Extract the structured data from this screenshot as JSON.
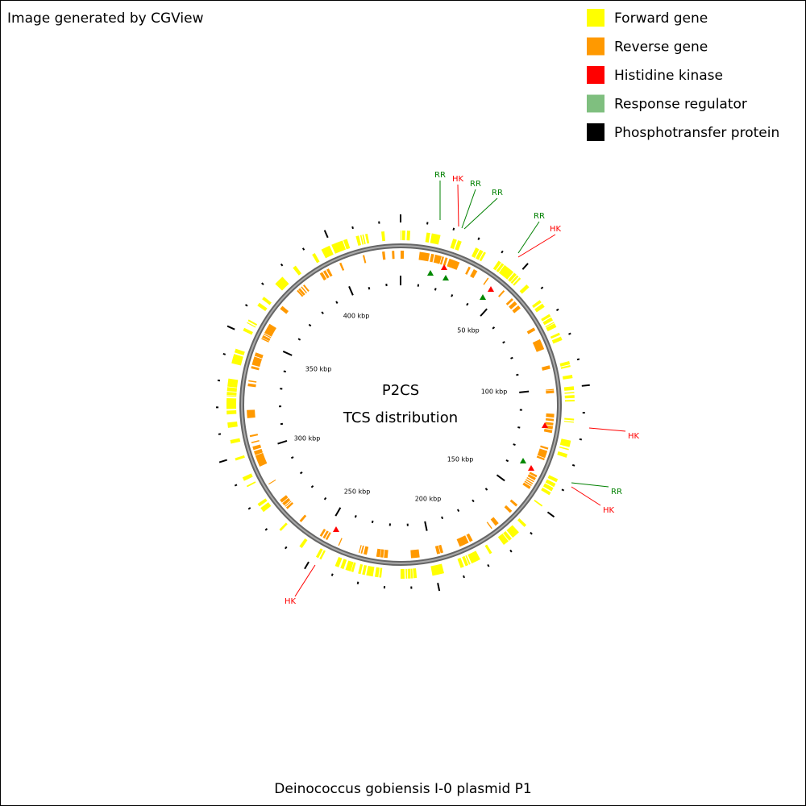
{
  "header": {
    "title": "Image generated by CGView"
  },
  "legend": [
    {
      "label": "Forward gene",
      "color": "#ffff00"
    },
    {
      "label": "Reverse gene",
      "color": "#ff9900"
    },
    {
      "label": "Histidine kinase",
      "color": "#ff0000"
    },
    {
      "label": "Response regulator",
      "color": "#7fbf7f"
    },
    {
      "label": "Phosphotransfer protein",
      "color": "#000000"
    }
  ],
  "center": {
    "title": "P2CS",
    "subtitle": "TCS distribution"
  },
  "scale_labels": [
    "50 kbp",
    "100 kbp",
    "150 kbp",
    "200 kbp",
    "250 kbp",
    "300 kbp",
    "350 kbp",
    "400 kbp"
  ],
  "features": [
    {
      "label": "RR",
      "color": "#008000"
    },
    {
      "label": "HK",
      "color": "#ff0000"
    },
    {
      "label": "RR",
      "color": "#008000"
    },
    {
      "label": "RR",
      "color": "#008000"
    },
    {
      "label": "RR",
      "color": "#008000"
    },
    {
      "label": "HK",
      "color": "#ff0000"
    },
    {
      "label": "HK",
      "color": "#ff0000"
    },
    {
      "label": "RR",
      "color": "#008000"
    },
    {
      "label": "HK",
      "color": "#ff0000"
    },
    {
      "label": "HK",
      "color": "#ff0000"
    }
  ],
  "footer": {
    "caption": "Deinococcus gobiensis I-0 plasmid P1"
  }
}
